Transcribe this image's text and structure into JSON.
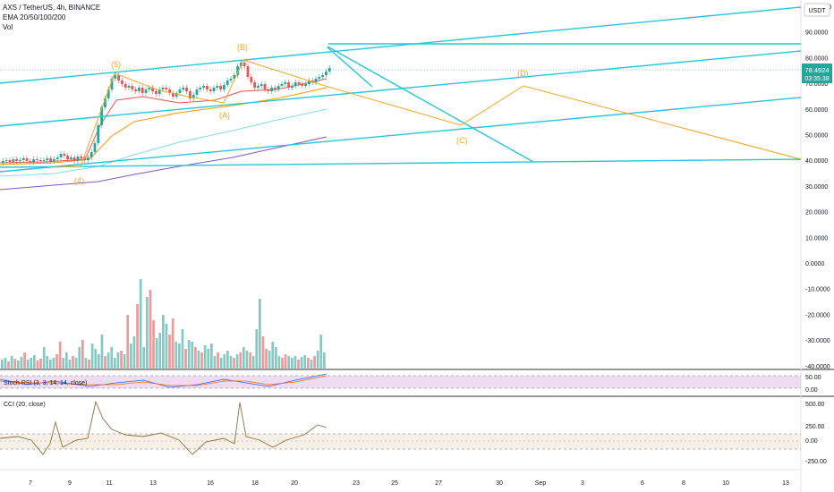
{
  "header": {
    "symbol_line": "AXS / TetherUS, 4h, BINANCE",
    "ema_line": "EMA 20/50/100/200",
    "vol_line": "Vol"
  },
  "price_axis": {
    "currency": "USDT",
    "ticks": [
      "100.0000",
      "90.0000",
      "80.0000",
      "70.0000",
      "60.0000",
      "50.0000",
      "40.0000",
      "30.0000",
      "20.0000",
      "10.0000",
      "0.0000",
      "-10.0000",
      "-20.0000",
      "-30.0000",
      "-40.0000"
    ],
    "last_price": "78.4924",
    "countdown": "03:35:38"
  },
  "stoch_panel": {
    "title": "Stoch RSI (3, 3, 14, 14, close)",
    "ticks": [
      "50.00",
      "0.00"
    ]
  },
  "cci_panel": {
    "title": "CCI (20, close)",
    "ticks": [
      "500.00",
      "250.00",
      "0.00",
      "-250.00"
    ]
  },
  "time_axis": {
    "labels": [
      "7",
      "9",
      "11",
      "13",
      "16",
      "18",
      "20",
      "23",
      "25",
      "27",
      "30",
      "Sep",
      "3",
      "6",
      "8",
      "10",
      "13"
    ]
  },
  "wave_labels": [
    "(5)",
    "(4)",
    "(B)",
    "(A)",
    "(C)",
    "(D)"
  ],
  "colors": {
    "teal_lines": "#26c6da",
    "orange_wave": "#f5a623",
    "bull": "#26a69a",
    "bear": "#ef5350",
    "ema_red": "#ef5350",
    "ema_orange": "#ff9800",
    "ema_cyan": "#80deea",
    "ema_purple": "#7e57c2",
    "price_tag": "#26a69a",
    "stoch_band": "#e1bee7"
  },
  "chart_data": {
    "type": "candlestick",
    "pair": "AXS / TetherUS",
    "timeframe": "4h",
    "exchange": "BINANCE",
    "last_price": 78.4924,
    "y_range": [
      -40,
      100
    ],
    "elliott_wave": [
      {
        "label": "(4)",
        "value": 40
      },
      {
        "label": "(5)",
        "value": 76
      },
      {
        "label": "(A)",
        "value": 67
      },
      {
        "label": "(B)",
        "value": 81
      },
      {
        "label": "(C)",
        "value": 56
      },
      {
        "label": "(D)",
        "value": 72
      }
    ],
    "stoch_range": [
      0,
      100
    ],
    "cci_range": [
      -300,
      500
    ]
  }
}
